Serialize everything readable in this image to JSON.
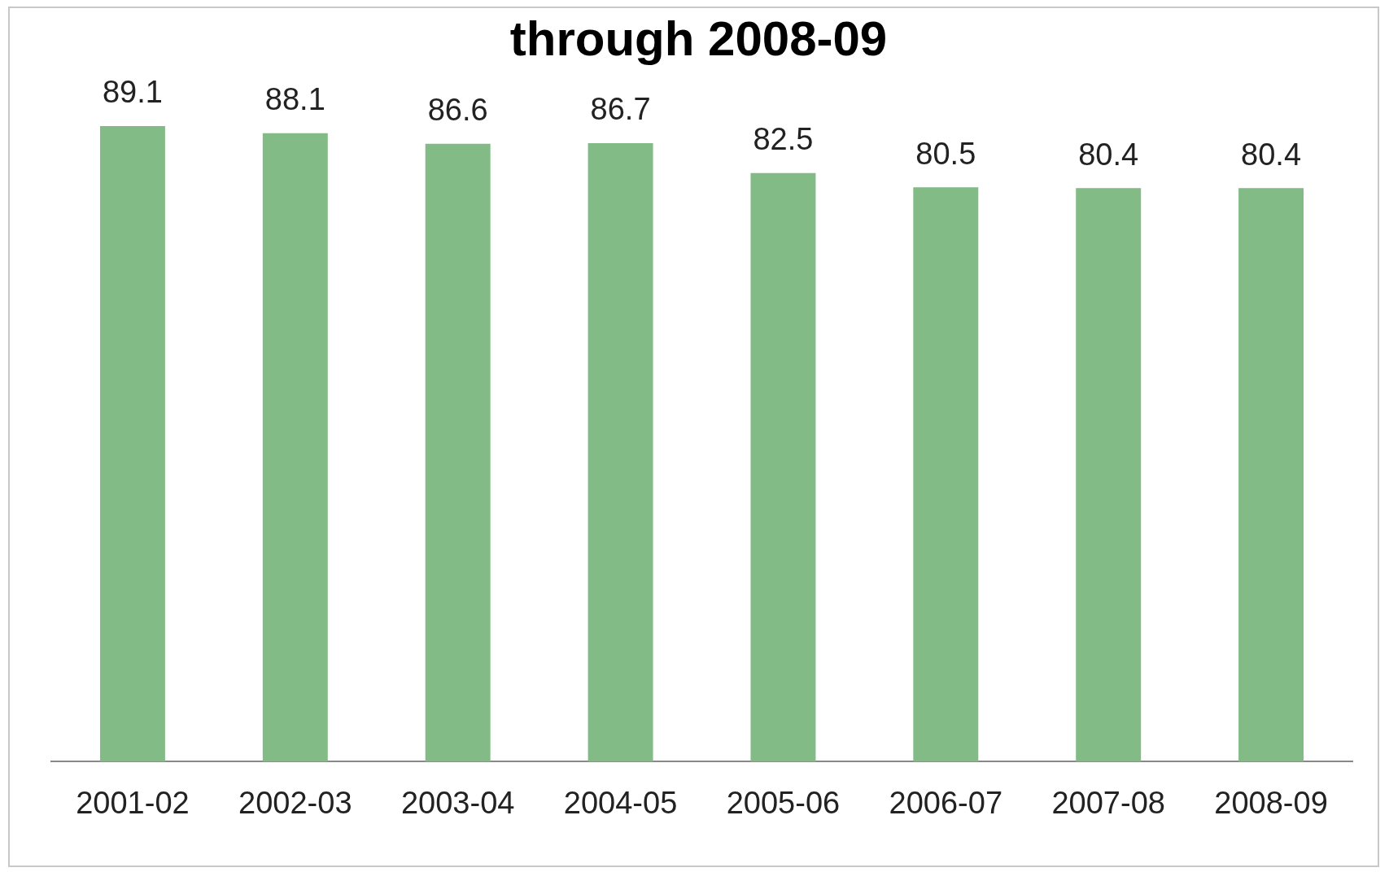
{
  "chart_data": {
    "type": "bar",
    "title": "through 2008-09",
    "categories": [
      "2001-02",
      "2002-03",
      "2003-04",
      "2004-05",
      "2005-06",
      "2006-07",
      "2007-08",
      "2008-09"
    ],
    "values": [
      89.1,
      88.1,
      86.6,
      86.7,
      82.5,
      80.5,
      80.4,
      80.4
    ],
    "color": "#82bb85",
    "data_labels": true,
    "tick_labels": "x",
    "grid": false,
    "legend": false
  }
}
